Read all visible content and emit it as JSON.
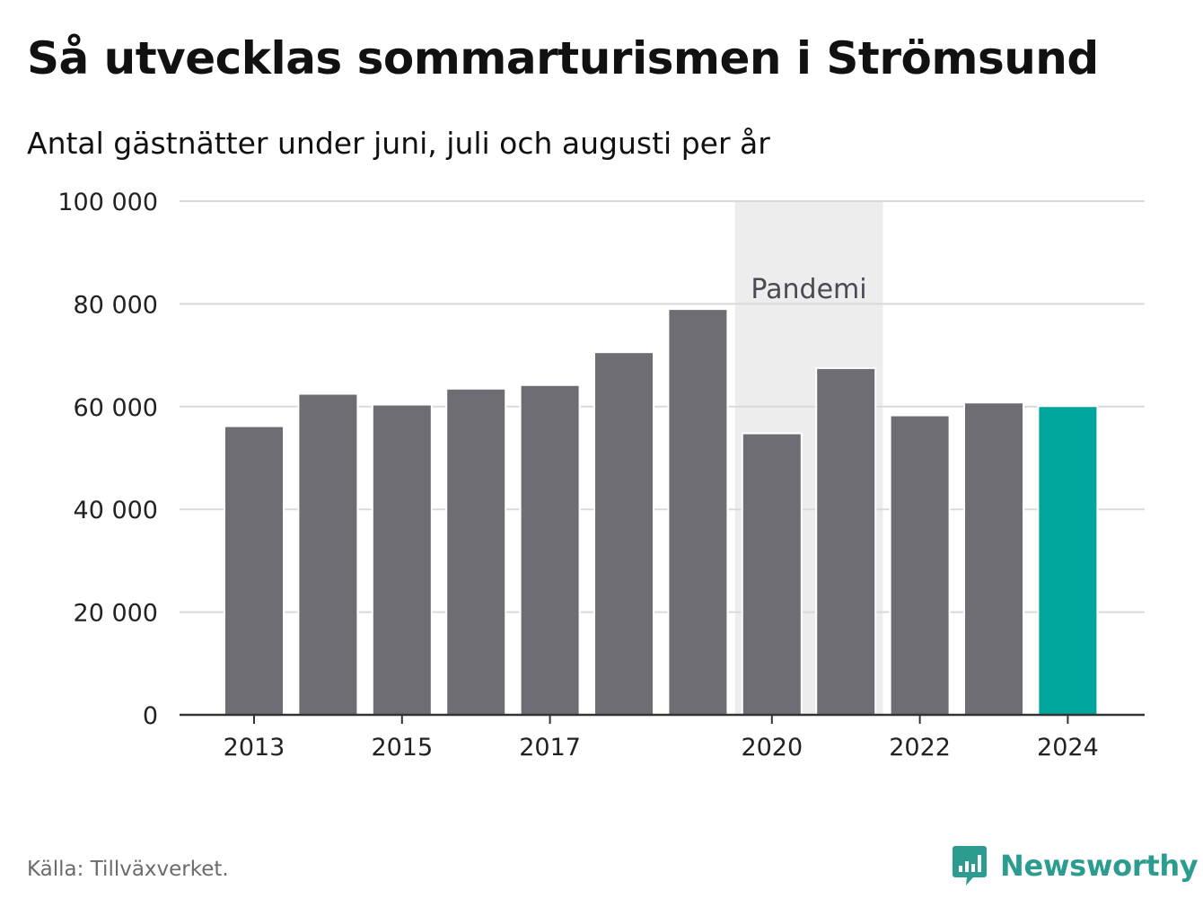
{
  "title": "Så utvecklas sommarturismen i Strömsund",
  "subtitle": "Antal gästnätter under juni, juli och augusti per år",
  "source": "Källa: Tillväxverket.",
  "brand": {
    "name": "Newsworthy",
    "icon": "newsworthy-logo-icon",
    "color": "#2c9c91"
  },
  "chart_data": {
    "type": "bar",
    "categories": [
      "2013",
      "2014",
      "2015",
      "2016",
      "2017",
      "2018",
      "2019",
      "2020",
      "2021",
      "2022",
      "2023",
      "2024"
    ],
    "values": [
      56200,
      62500,
      60400,
      63500,
      64200,
      70600,
      79000,
      54800,
      67500,
      58300,
      60800,
      60100
    ],
    "ylim": [
      0,
      100000
    ],
    "yticks": [
      0,
      20000,
      40000,
      60000,
      80000,
      100000
    ],
    "ytick_labels": [
      "0",
      "20 000",
      "40 000",
      "60 000",
      "80 000",
      "100 000"
    ],
    "xtick_labels": [
      "2013",
      "2015",
      "2017",
      "2020",
      "2022",
      "2024"
    ],
    "grid": true,
    "bar_color": "#6e6d73",
    "highlight": {
      "category": "2024",
      "color": "#00a69b"
    },
    "annotation": {
      "label": "Pandemi",
      "from": "2020",
      "to": "2021",
      "color": "#ededed"
    }
  }
}
